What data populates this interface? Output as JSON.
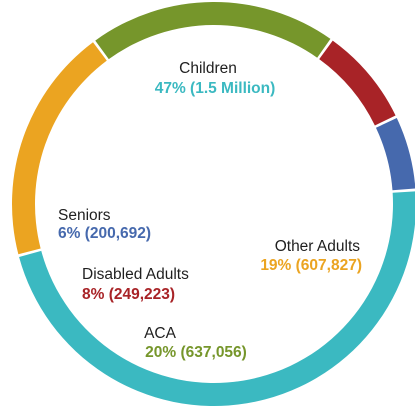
{
  "chart_data": {
    "type": "pie",
    "donut": true,
    "legend": "none",
    "slices": [
      {
        "category": "Children",
        "percent": 47,
        "value_text": "47% (1.5 Million)",
        "color": "#3bb9c1"
      },
      {
        "category": "Other Adults",
        "percent": 19,
        "value_text": "19% (607,827)",
        "color": "#eba421"
      },
      {
        "category": "ACA",
        "percent": 20,
        "value_text": "20% (637,056)",
        "color": "#76962b"
      },
      {
        "category": "Disabled Adults",
        "percent": 8,
        "value_text": "8% (249,223)",
        "color": "#a82327"
      },
      {
        "category": "Seniors",
        "percent": 6,
        "value_text": "6% (200,692)",
        "color": "#4669ad"
      }
    ]
  }
}
